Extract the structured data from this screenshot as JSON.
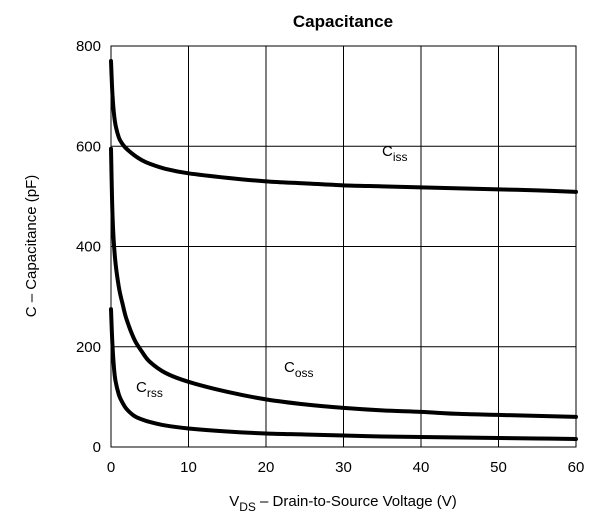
{
  "chart_data": {
    "type": "line",
    "title": "Capacitance",
    "xlabel": {
      "main": "V",
      "subscript": "DS",
      "rest": " – Drain-to-Source Voltage (V)"
    },
    "ylabel": "C – Capacitance (pF)",
    "xlim": [
      0,
      60
    ],
    "ylim": [
      0,
      800
    ],
    "xticks": [
      "0",
      "10",
      "20",
      "30",
      "40",
      "50",
      "60"
    ],
    "yticks": [
      "0",
      "200",
      "400",
      "600",
      "800"
    ],
    "grid": true,
    "series": [
      {
        "name": "C",
        "name_sub": "iss",
        "x": [
          0,
          0.2,
          0.5,
          1,
          1.5,
          2,
          3,
          4,
          5,
          7,
          10,
          15,
          20,
          25,
          30,
          35,
          40,
          45,
          50,
          55,
          60
        ],
        "y": [
          770,
          700,
          650,
          618,
          604,
          595,
          582,
          572,
          565,
          555,
          546,
          537,
          530,
          526,
          522,
          520,
          518,
          516,
          514,
          512,
          509
        ]
      },
      {
        "name": "C",
        "name_sub": "oss",
        "x": [
          0,
          0.2,
          0.5,
          1,
          1.5,
          2,
          3,
          4,
          5,
          7,
          10,
          15,
          20,
          25,
          30,
          35,
          40,
          45,
          50,
          55,
          60
        ],
        "y": [
          595,
          460,
          380,
          320,
          285,
          255,
          215,
          190,
          170,
          148,
          130,
          110,
          95,
          85,
          78,
          73,
          70,
          66,
          64,
          62,
          60
        ]
      },
      {
        "name": "C",
        "name_sub": "rss",
        "x": [
          0,
          0.2,
          0.5,
          1,
          1.5,
          2,
          3,
          4,
          5,
          7,
          10,
          15,
          20,
          25,
          30,
          35,
          40,
          45,
          50,
          55,
          60
        ],
        "y": [
          275,
          200,
          140,
          105,
          88,
          76,
          62,
          55,
          50,
          43,
          37,
          31,
          27,
          25,
          23,
          21,
          20,
          19,
          18,
          17,
          16
        ]
      }
    ]
  }
}
